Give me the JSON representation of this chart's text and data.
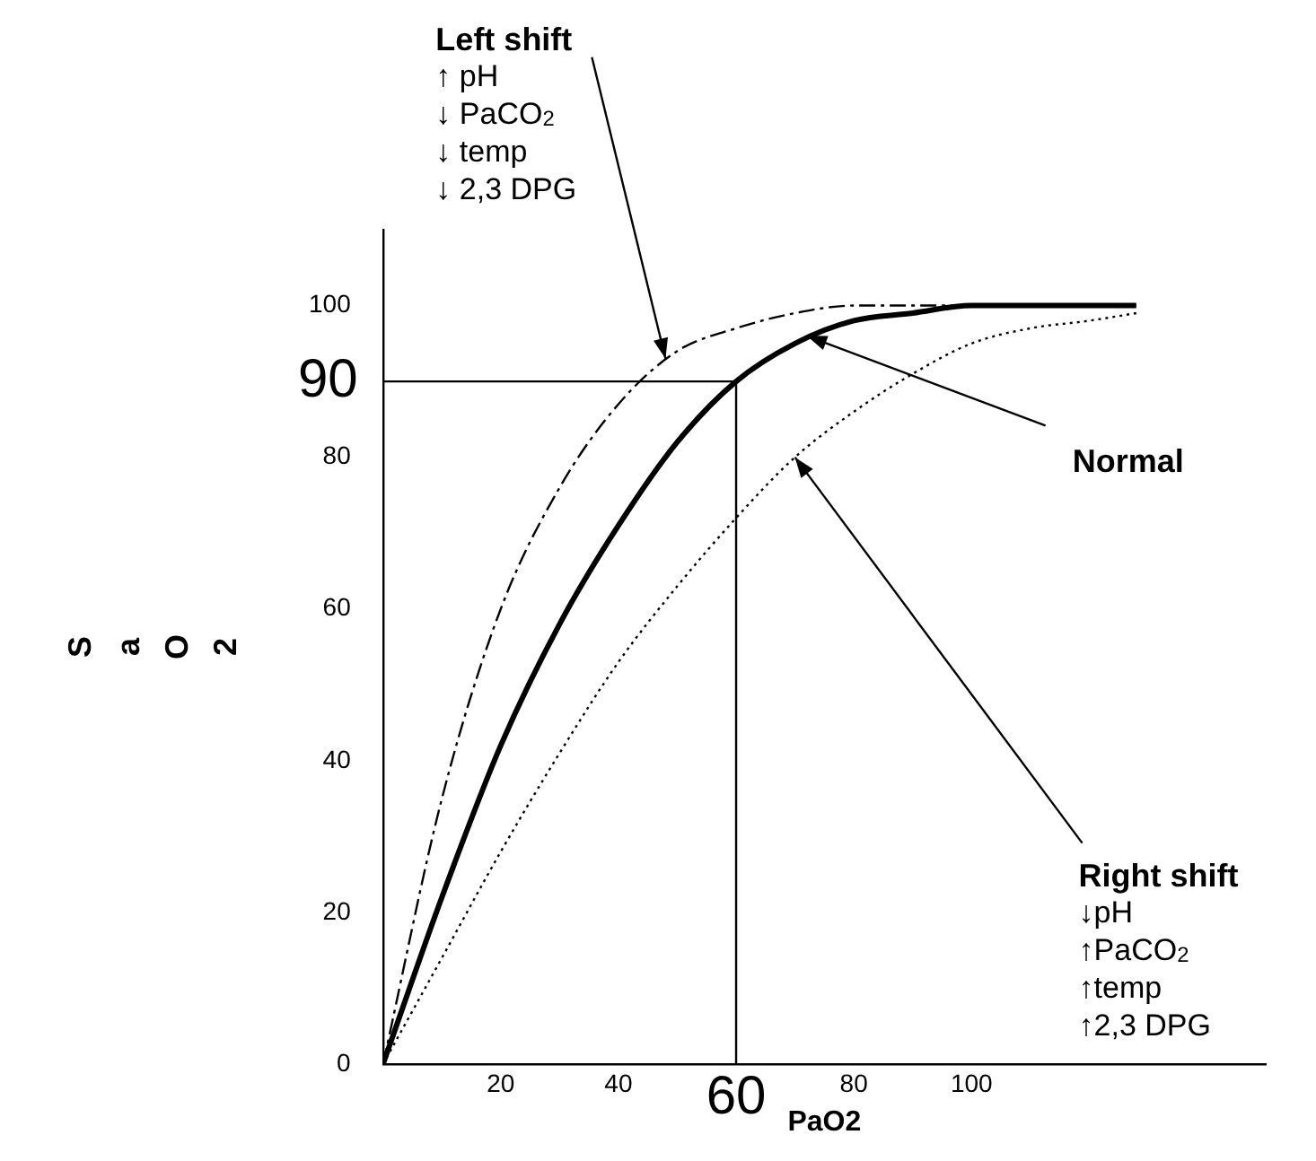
{
  "chart_data": {
    "type": "line",
    "xlabel": "PaO2",
    "ylabel": "SaO2",
    "x": [
      0,
      10,
      20,
      30,
      40,
      50,
      60,
      70,
      80,
      90,
      100,
      110,
      120,
      128
    ],
    "series": [
      {
        "color": "#000000",
        "line_style": "dashed",
        "values": [
          0,
          35,
          60,
          76,
          87,
          94,
          97,
          99,
          100,
          100,
          100,
          100,
          100,
          100
        ]
      },
      {
        "color": "#000000",
        "line_style": "solid",
        "values": [
          0,
          22,
          42,
          58,
          71,
          82,
          90,
          95,
          98,
          99,
          100,
          100,
          100,
          100
        ]
      },
      {
        "color": "#000000",
        "line_style": "dotted",
        "values": [
          0,
          14,
          28,
          41,
          53,
          63,
          72,
          80,
          86,
          91,
          95,
          97,
          98,
          99
        ]
      }
    ],
    "xlim": [
      0,
      150
    ],
    "ylim": [
      0,
      110
    ],
    "xticks": [
      20,
      40,
      80,
      100
    ],
    "yticks": [
      0,
      20,
      40,
      60,
      80,
      100
    ],
    "ref_lines": [
      {
        "axis": "y",
        "value": 90,
        "label": "90"
      },
      {
        "axis": "x",
        "value": 60,
        "label": "60"
      }
    ],
    "annotations": [
      {
        "text": "Left shift\n↑ pH\n↓ PaCO$_{2}$\n↓ temp\n↓ 2,3 DPG",
        "x": 48,
        "y": 93
      },
      {
        "text": "Normal",
        "x": 72,
        "y": 96
      },
      {
        "text": "Right shift\n↓pH\n↑PaCO$_{2}$\n↑temp\n↑2,3 DPG",
        "x": 70,
        "y": 80
      }
    ],
    "grid": false,
    "legend": false,
    "marker": "none"
  }
}
